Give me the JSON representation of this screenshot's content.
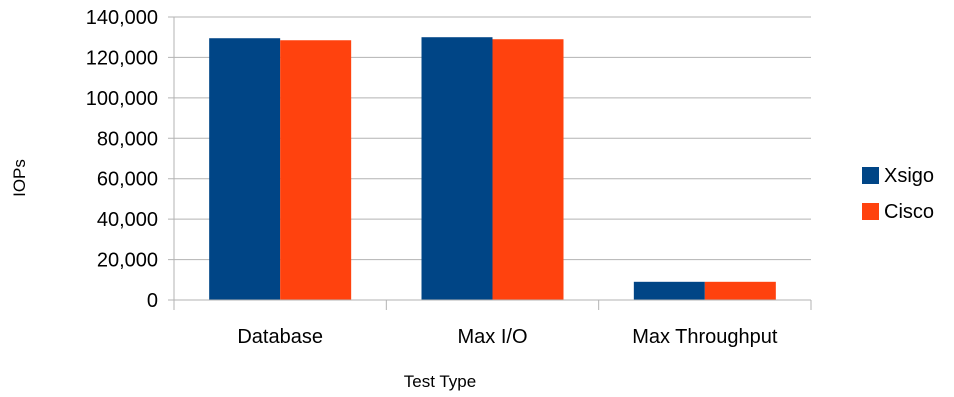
{
  "chart_data": {
    "type": "bar",
    "title": "",
    "xlabel": "Test Type",
    "ylabel": "IOPs",
    "categories": [
      "Database",
      "Max I/O",
      "Max Throughput"
    ],
    "series": [
      {
        "name": "Xsigo",
        "values": [
          129500,
          130000,
          9000
        ],
        "color": "#004586"
      },
      {
        "name": "Cisco",
        "values": [
          128500,
          129000,
          9000
        ],
        "color": "#ff420e"
      }
    ],
    "ylim": [
      0,
      140000
    ],
    "yticks": [
      0,
      20000,
      40000,
      60000,
      80000,
      100000,
      120000,
      140000
    ],
    "ytick_labels": [
      "0",
      "20,000",
      "40,000",
      "60,000",
      "80,000",
      "100,000",
      "120,000",
      "140,000"
    ],
    "grid": true,
    "legend_position": "right"
  }
}
